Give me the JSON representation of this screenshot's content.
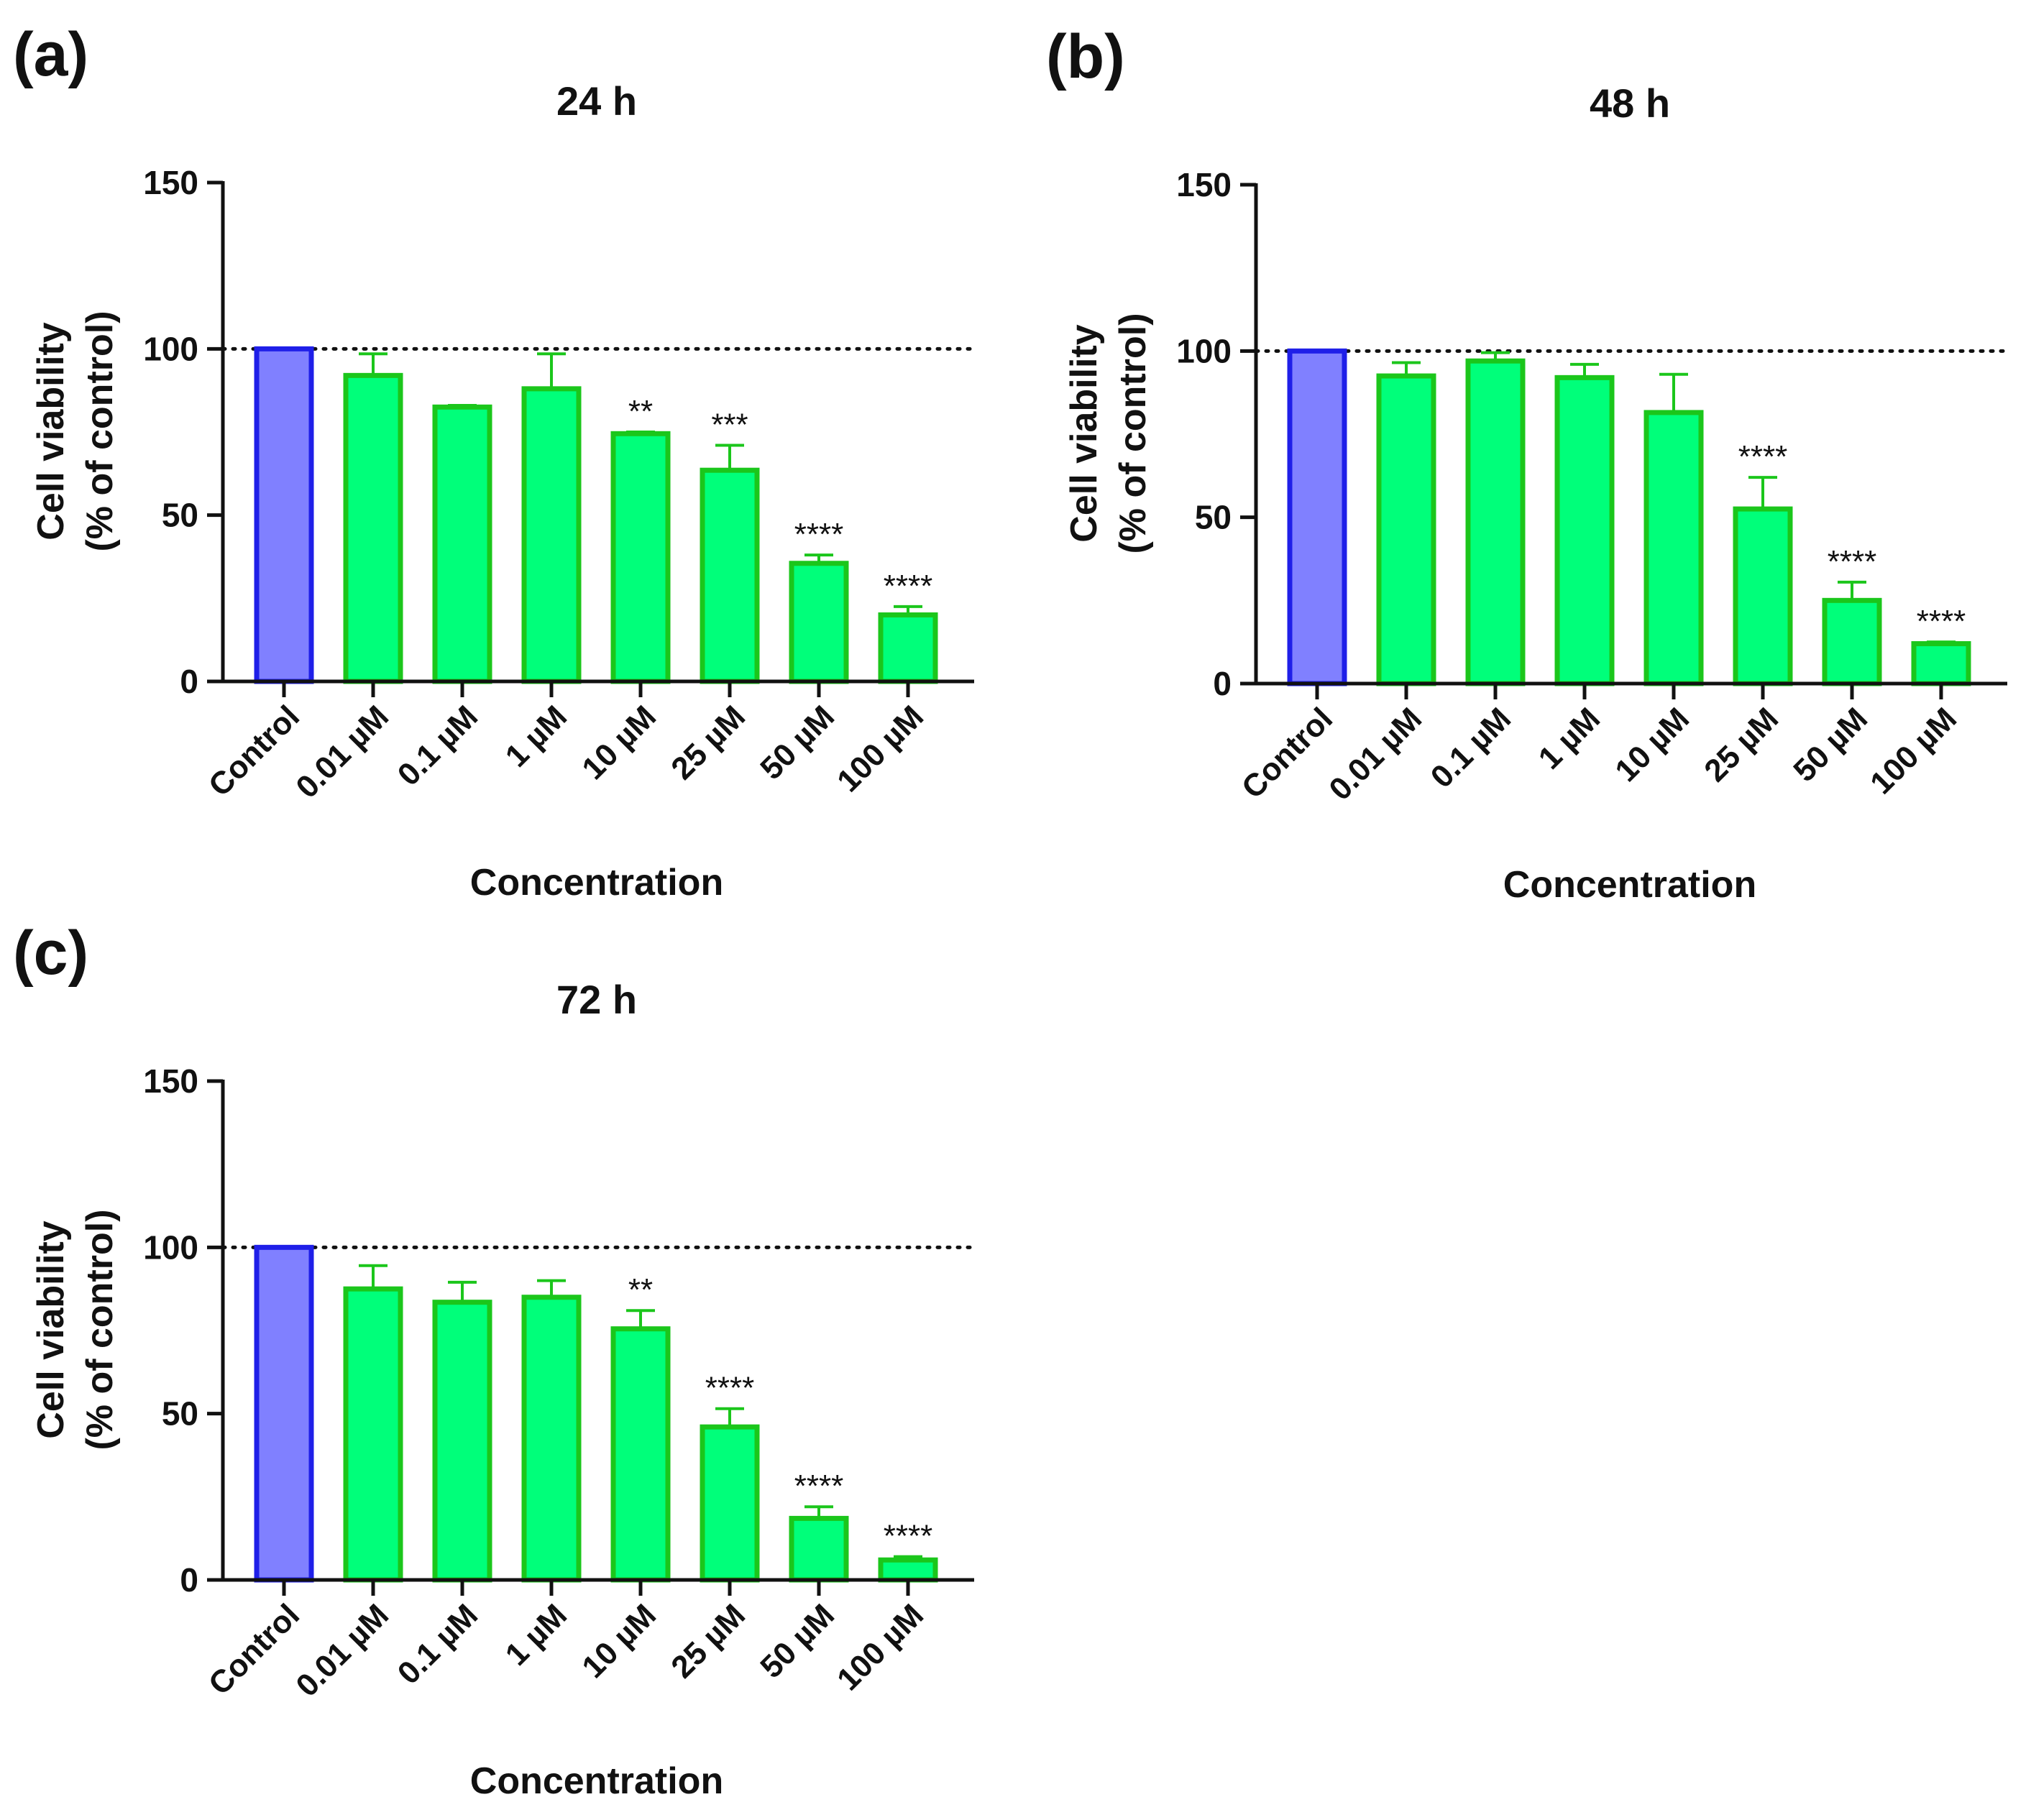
{
  "colors": {
    "control_fill": "#8080ff",
    "control_stroke": "#1f1fe8",
    "treated_fill": "#00ff7a",
    "treated_stroke": "#1bc61b",
    "axis": "#111111",
    "reference_line": "#111111"
  },
  "chart_data": [
    {
      "panel": "(a)",
      "type": "bar",
      "title": "24 h",
      "xlabel": "Concentration",
      "ylabel": [
        "Cell viability",
        "(% of control)"
      ],
      "ylim": [
        0,
        150
      ],
      "yticks": [
        0,
        50,
        100,
        150
      ],
      "reference_line": 100,
      "categories": [
        "Control",
        "0.01 µM",
        "0.1 µM",
        "1 µM",
        "10 µM",
        "25 µM",
        "50 µM",
        "100 µM"
      ],
      "values": [
        100,
        92,
        82.5,
        88,
        74.5,
        63.5,
        35.5,
        20
      ],
      "errors": [
        0,
        6.5,
        0.5,
        10.5,
        0.5,
        7.5,
        2.5,
        2.5
      ],
      "significance": [
        "",
        "",
        "",
        "",
        "**",
        "***",
        "****",
        "****"
      ]
    },
    {
      "panel": "(b)",
      "type": "bar",
      "title": "48 h",
      "xlabel": "Concentration",
      "ylabel": [
        "Cell viability",
        "(% of control)"
      ],
      "ylim": [
        0,
        150
      ],
      "yticks": [
        0,
        50,
        100,
        150
      ],
      "reference_line": 100,
      "categories": [
        "Control",
        "0.01 µM",
        "0.1 µM",
        "1 µM",
        "10 µM",
        "25 µM",
        "50 µM",
        "100 µM"
      ],
      "values": [
        100,
        92.5,
        97,
        92,
        81.5,
        52.5,
        25,
        12
      ],
      "errors": [
        0,
        4,
        2.5,
        4,
        11.5,
        9.5,
        5.5,
        0.5
      ],
      "significance": [
        "",
        "",
        "",
        "",
        "",
        "****",
        "****",
        "****"
      ]
    },
    {
      "panel": "(c)",
      "type": "bar",
      "title": "72 h",
      "xlabel": "Concentration",
      "ylabel": [
        "Cell viability",
        "(% of control)"
      ],
      "ylim": [
        0,
        150
      ],
      "yticks": [
        0,
        50,
        100,
        150
      ],
      "reference_line": 100,
      "categories": [
        "Control",
        "0.01 µM",
        "0.1 µM",
        "1 µM",
        "10 µM",
        "25 µM",
        "50 µM",
        "100 µM"
      ],
      "values": [
        100,
        87.5,
        83.5,
        85,
        75.5,
        46,
        18.5,
        6
      ],
      "errors": [
        0,
        7,
        6,
        5,
        5.5,
        5.5,
        3.5,
        1
      ],
      "significance": [
        "",
        "",
        "",
        "",
        "**",
        "****",
        "****",
        "****"
      ]
    }
  ]
}
